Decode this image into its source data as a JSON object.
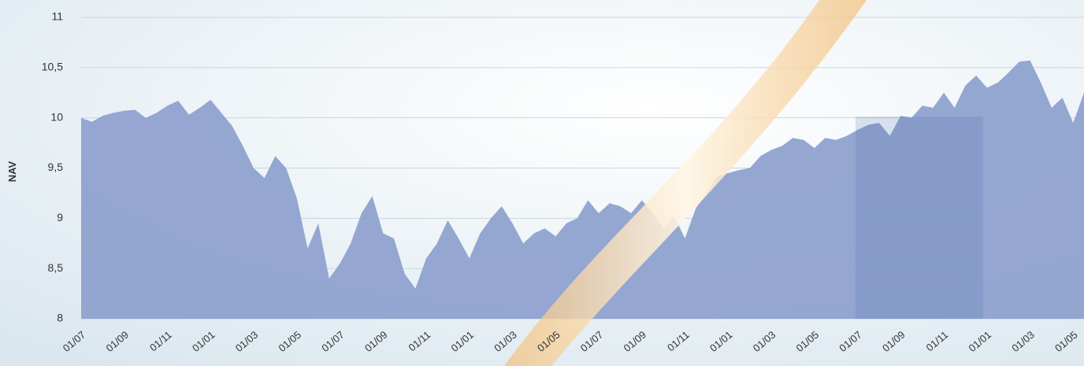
{
  "chart_data": {
    "type": "area",
    "y_label": "NAV",
    "color": "#8c9fcd",
    "grid": true,
    "ylim": [
      8,
      11
    ],
    "yticks": [
      8,
      {
        "value": 8.5,
        "label": "8,5"
      },
      9,
      {
        "value": 9.5,
        "label": "9,5"
      },
      10,
      {
        "value": 10.5,
        "label": "10,5"
      },
      11
    ],
    "categories": [
      "01/07",
      null,
      null,
      null,
      "01/09",
      null,
      null,
      null,
      "01/11",
      null,
      null,
      null,
      "01/01",
      null,
      null,
      null,
      "01/03",
      null,
      null,
      null,
      "01/05",
      null,
      null,
      null,
      "01/07",
      null,
      null,
      null,
      "01/09",
      null,
      null,
      null,
      "01/11",
      null,
      null,
      null,
      "01/01",
      null,
      null,
      null,
      "01/03",
      null,
      null,
      null,
      "01/05",
      null,
      null,
      null,
      "01/07",
      null,
      null,
      null,
      "01/09",
      null,
      null,
      null,
      "01/11",
      null,
      null,
      null,
      "01/01",
      null,
      null,
      null,
      "01/03",
      null,
      null,
      null,
      "01/05",
      null,
      null,
      null,
      "01/07",
      null,
      null,
      null,
      "01/09",
      null,
      null,
      null,
      "01/11",
      null,
      null,
      null,
      "01/01",
      null,
      null,
      null,
      "01/03",
      null,
      null,
      null,
      "01/05",
      null
    ],
    "values": [
      10.0,
      9.96,
      10.02,
      10.05,
      10.07,
      10.08,
      10.0,
      10.05,
      10.12,
      10.17,
      10.03,
      10.1,
      10.18,
      10.05,
      9.92,
      9.72,
      9.5,
      9.4,
      9.62,
      9.5,
      9.2,
      8.7,
      8.95,
      8.4,
      8.55,
      8.75,
      9.05,
      9.22,
      8.85,
      8.8,
      8.45,
      8.3,
      8.6,
      8.75,
      8.98,
      8.8,
      8.6,
      8.85,
      9.0,
      9.12,
      8.95,
      8.75,
      8.85,
      8.9,
      8.82,
      8.95,
      9.0,
      9.18,
      9.05,
      9.15,
      9.12,
      9.05,
      9.18,
      9.05,
      8.9,
      9.02,
      8.8,
      9.1,
      9.25,
      9.42,
      9.45,
      9.48,
      9.5,
      9.62,
      9.68,
      9.72,
      9.8,
      9.78,
      9.7,
      9.8,
      9.78,
      9.82,
      9.88,
      9.93,
      9.95,
      9.82,
      10.02,
      10.0,
      10.12,
      10.1,
      10.25,
      10.1,
      10.32,
      10.42,
      10.3,
      10.35,
      10.45,
      10.56,
      10.57,
      10.35,
      10.1,
      10.2,
      9.95,
      10.25
    ]
  }
}
